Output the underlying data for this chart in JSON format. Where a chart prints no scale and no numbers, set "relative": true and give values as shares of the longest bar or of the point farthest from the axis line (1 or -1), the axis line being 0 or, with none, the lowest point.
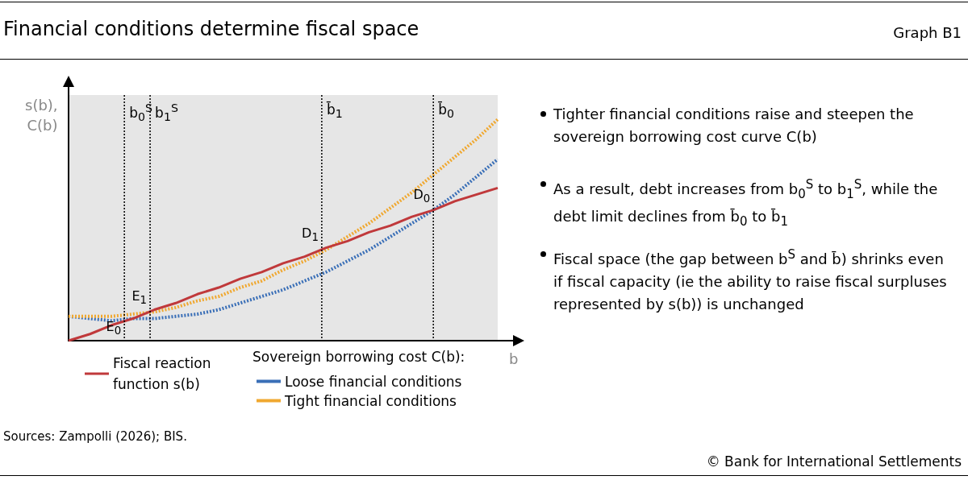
{
  "chart_data": {
    "type": "line",
    "title": "Financial conditions determine fiscal space",
    "xlabel": "b",
    "ylabel": "s(b),\nC(b)",
    "relative": true,
    "grid": false,
    "legend": "bottom",
    "legend_title": "Sovereign borrowing cost C(b):",
    "categories": [
      null,
      null,
      null,
      null,
      null,
      null,
      null,
      null,
      null,
      null,
      null,
      null,
      null,
      null,
      null,
      null,
      null,
      null,
      null,
      null,
      null
    ],
    "series": [
      {
        "name": "Fiscal reaction function s(b)",
        "color": "#c0393b",
        "line_style": "solid",
        "values": [
          0,
          0.03,
          0.07,
          0.1,
          0.14,
          0.17,
          0.21,
          0.24,
          0.28,
          0.31,
          0.35,
          0.38,
          0.42,
          0.45,
          0.49,
          0.52,
          0.56,
          0.59,
          0.63,
          0.66,
          0.69
        ]
      },
      {
        "name": "Loose financial conditions",
        "color": "#3a6fb7",
        "line_style": "dotted",
        "values": [
          0.11,
          0.1,
          0.09,
          0.1,
          0.1,
          0.11,
          0.12,
          0.14,
          0.17,
          0.2,
          0.23,
          0.27,
          0.31,
          0.36,
          0.41,
          0.47,
          0.53,
          0.59,
          0.66,
          0.74,
          0.82
        ]
      },
      {
        "name": "Tight financial conditions",
        "color": "#f0a830",
        "line_style": "dotted",
        "values": [
          0.11,
          0.11,
          0.11,
          0.12,
          0.13,
          0.15,
          0.18,
          0.2,
          0.24,
          0.27,
          0.32,
          0.36,
          0.41,
          0.47,
          0.53,
          0.6,
          0.67,
          0.75,
          0.83,
          0.91,
          1.0
        ]
      }
    ],
    "annotations": [
      "Graph B1",
      "b$_{0}$$^{S}$",
      "b$_{1}$$^{S}$",
      "b̄$_{1}$",
      "b̄$_{0}$",
      "E$_{0}$",
      "E$_{1}$",
      "D$_{1}$",
      "D$_{0}$",
      "Tighter financial conditions raise and steepen the sovereign borrowing cost curve C(b)",
      "As a result, debt increases from b$_{0}$$^{S}$ to b$_{1}$$^{S}$, while the debt limit declines from b̄$_{0}$ to b̄$_{1}$",
      "Fiscal space (the gap between b$^{S}$ and b̄) shrinks even if fiscal capacity (ie the ability to raise fiscal surpluses represented by s(b)) is unchanged",
      "Sources: Zampolli (2026); BIS.",
      "© Bank for International Settlements"
    ]
  }
}
